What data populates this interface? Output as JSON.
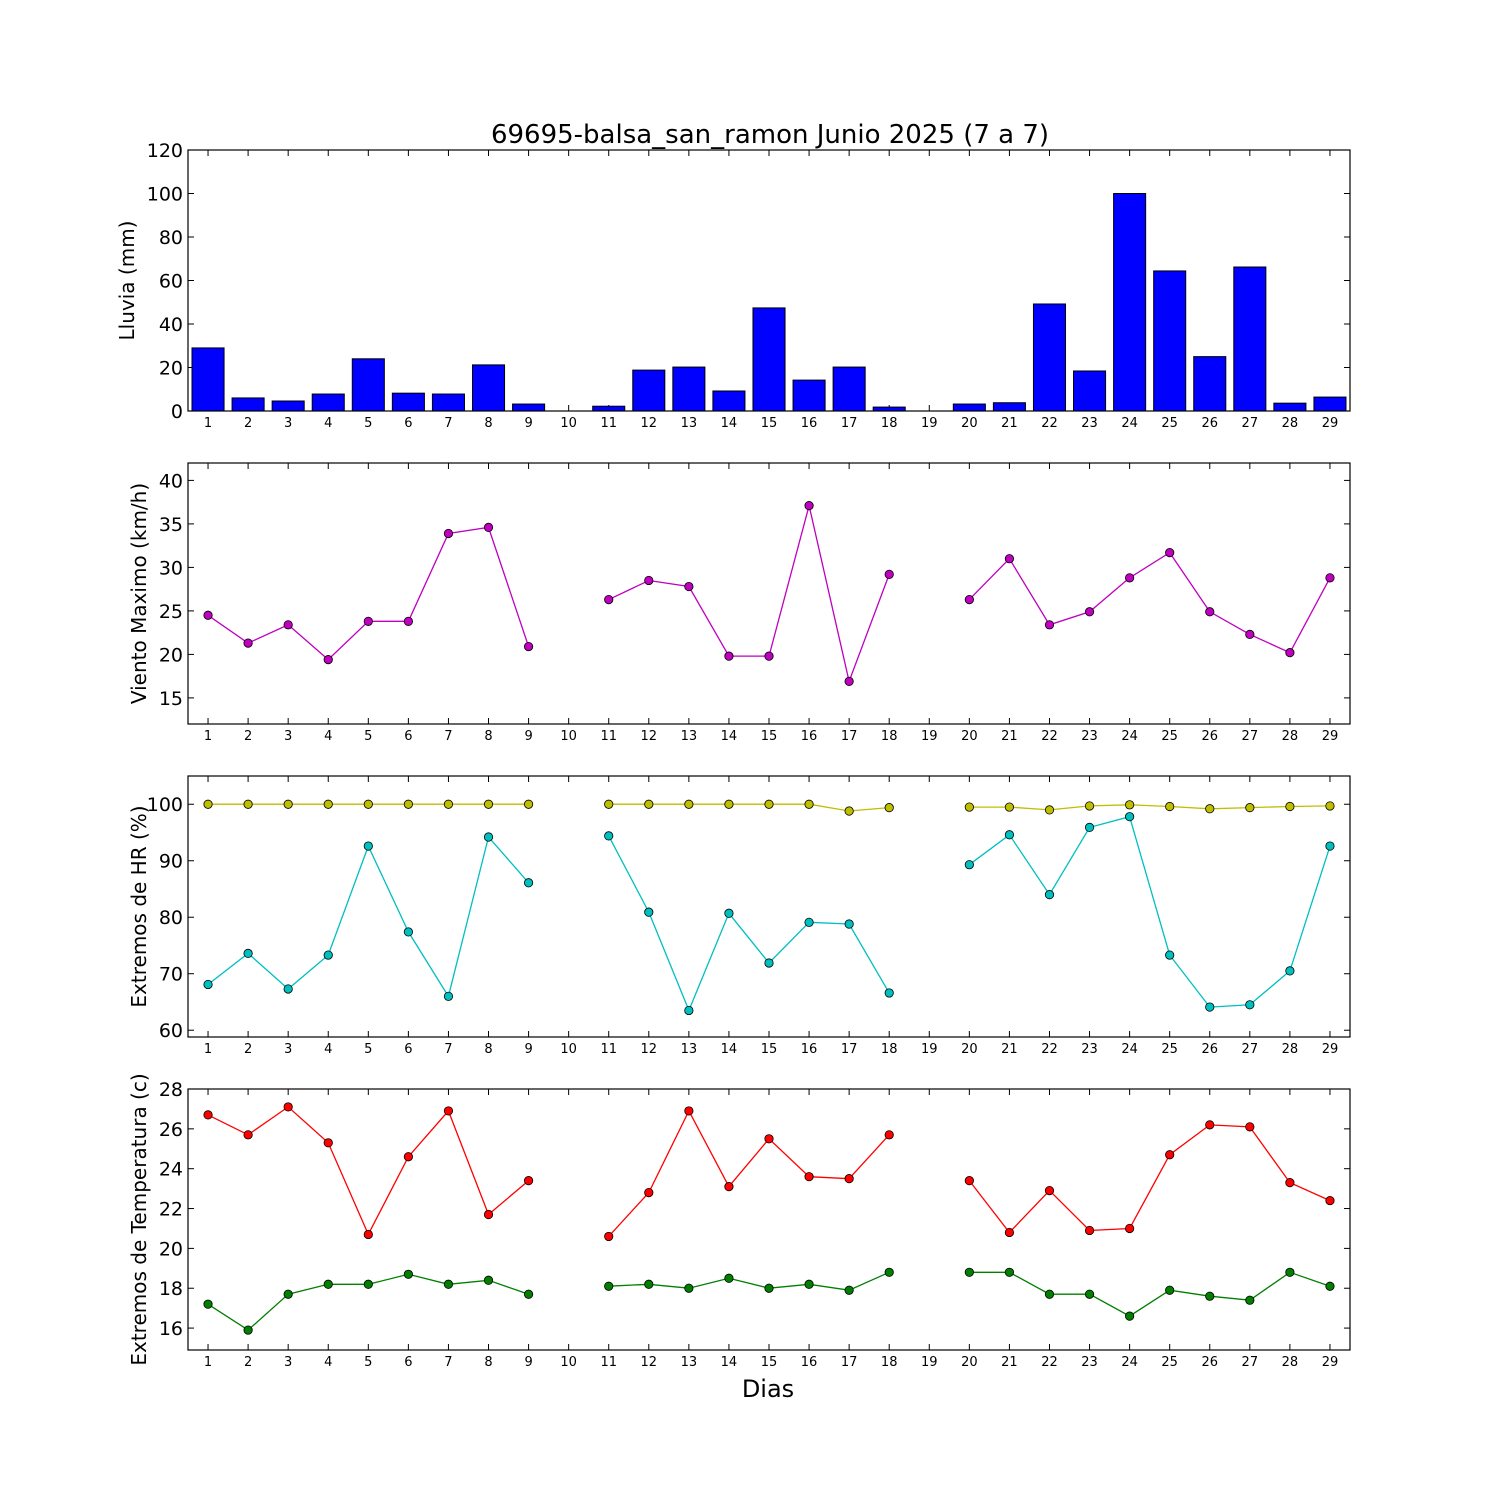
{
  "title": "69695-balsa_san_ramon Junio 2025  (7 a 7)",
  "xlabel": "Dias",
  "chart_data": [
    {
      "type": "bar",
      "ylabel": "Lluvia (mm)",
      "ylim": [
        0,
        120
      ],
      "yticks": [
        0,
        20,
        40,
        60,
        80,
        100,
        120
      ],
      "x": [
        1,
        2,
        3,
        4,
        5,
        6,
        7,
        8,
        9,
        10,
        11,
        12,
        13,
        14,
        15,
        16,
        17,
        18,
        19,
        20,
        21,
        22,
        23,
        24,
        25,
        26,
        27,
        28,
        29
      ],
      "series": [
        {
          "color": "#0000ff",
          "values": [
            29,
            6,
            4.6,
            7.8,
            24,
            8.2,
            7.8,
            21.2,
            3.2,
            0,
            2.2,
            18.8,
            20.2,
            9.2,
            47.4,
            14.2,
            20.2,
            1.8,
            0,
            3.2,
            3.8,
            49.2,
            18.4,
            100,
            64.4,
            25,
            66.2,
            3.6,
            6.4
          ]
        }
      ]
    },
    {
      "type": "line",
      "ylabel": "Viento Maximo (km/h)",
      "ylim": [
        12,
        42
      ],
      "yticks": [
        15,
        20,
        25,
        30,
        35,
        40
      ],
      "x": [
        1,
        2,
        3,
        4,
        5,
        6,
        7,
        8,
        9,
        10,
        11,
        12,
        13,
        14,
        15,
        16,
        17,
        18,
        19,
        20,
        21,
        22,
        23,
        24,
        25,
        26,
        27,
        28,
        29
      ],
      "series": [
        {
          "color": "#bf00bf",
          "values": [
            24.5,
            21.3,
            23.4,
            19.4,
            23.8,
            23.8,
            33.9,
            34.6,
            20.9,
            null,
            26.3,
            28.5,
            27.8,
            19.8,
            19.8,
            37.1,
            16.9,
            29.2,
            null,
            26.3,
            31,
            23.4,
            24.9,
            28.8,
            31.7,
            24.9,
            22.3,
            20.2,
            28.8
          ]
        }
      ]
    },
    {
      "type": "line",
      "ylabel": "Extremos de HR (%)",
      "ylim": [
        58.8,
        105
      ],
      "yticks": [
        60,
        70,
        80,
        90,
        100
      ],
      "x": [
        1,
        2,
        3,
        4,
        5,
        6,
        7,
        8,
        9,
        10,
        11,
        12,
        13,
        14,
        15,
        16,
        17,
        18,
        19,
        20,
        21,
        22,
        23,
        24,
        25,
        26,
        27,
        28,
        29
      ],
      "series": [
        {
          "color": "#bfbf00",
          "values": [
            100,
            100,
            100,
            100,
            100,
            100,
            100,
            100,
            100,
            null,
            100,
            100,
            100,
            100,
            100,
            100,
            98.8,
            99.4,
            null,
            99.5,
            99.5,
            99,
            99.7,
            99.9,
            99.6,
            99.2,
            99.4,
            99.6,
            99.7
          ]
        },
        {
          "color": "#00bfbf",
          "values": [
            68.1,
            73.6,
            67.3,
            73.3,
            92.6,
            77.4,
            66,
            94.2,
            86.1,
            null,
            94.4,
            80.9,
            63.5,
            80.7,
            71.9,
            79.1,
            78.8,
            66.6,
            null,
            89.3,
            94.6,
            84,
            95.9,
            97.8,
            73.3,
            64.1,
            64.5,
            70.5,
            92.6
          ]
        }
      ]
    },
    {
      "type": "line",
      "ylabel": "Extremos de Temperatura (c)",
      "ylim": [
        14.9,
        28
      ],
      "yticks": [
        16,
        18,
        20,
        22,
        24,
        26,
        28
      ],
      "x": [
        1,
        2,
        3,
        4,
        5,
        6,
        7,
        8,
        9,
        10,
        11,
        12,
        13,
        14,
        15,
        16,
        17,
        18,
        19,
        20,
        21,
        22,
        23,
        24,
        25,
        26,
        27,
        28,
        29
      ],
      "series": [
        {
          "color": "#ff0000",
          "values": [
            26.7,
            25.7,
            27.1,
            25.3,
            20.7,
            24.6,
            26.9,
            21.7,
            23.4,
            null,
            20.6,
            22.8,
            26.9,
            23.1,
            25.5,
            23.6,
            23.5,
            25.7,
            null,
            23.4,
            20.8,
            22.9,
            20.9,
            21,
            24.7,
            26.2,
            26.1,
            23.3,
            22.4
          ]
        },
        {
          "color": "#007f00",
          "values": [
            17.2,
            15.9,
            17.7,
            18.2,
            18.2,
            18.7,
            18.2,
            18.4,
            17.7,
            null,
            18.1,
            18.2,
            18,
            18.5,
            18,
            18.2,
            17.9,
            18.8,
            null,
            18.8,
            18.8,
            17.7,
            17.7,
            16.6,
            17.9,
            17.6,
            17.4,
            18.8,
            18.1
          ]
        }
      ]
    }
  ]
}
